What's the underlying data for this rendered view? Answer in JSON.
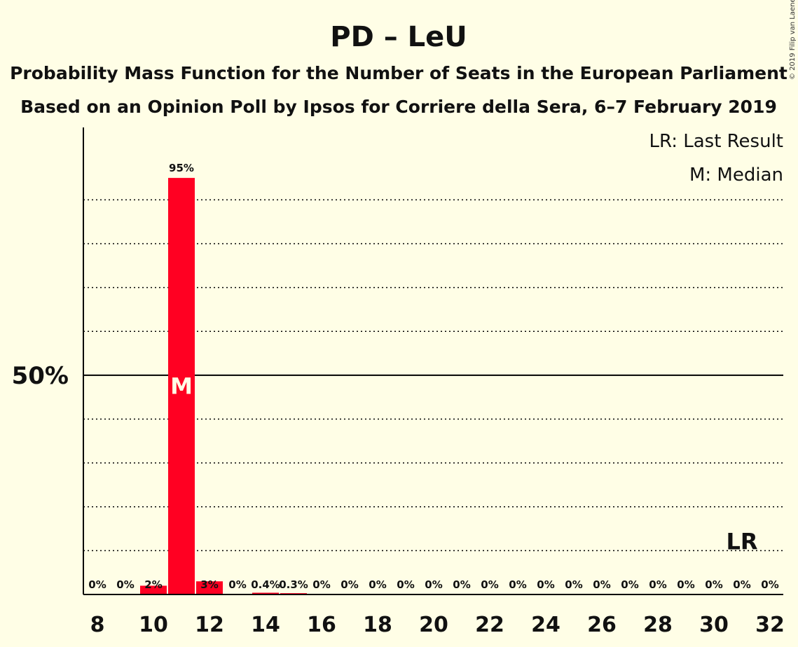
{
  "chart_data": {
    "type": "bar",
    "title": "PD – LeU",
    "subtitle": "Probability Mass Function for the Number of Seats in the European Parliament",
    "subtitle2": "Based on an Opinion Poll by Ipsos for Corriere della Sera, 6–7 February 2019",
    "copyright": "© 2019 Filip van Laenen",
    "legend": {
      "lr": "LR: Last Result",
      "m": "M: Median",
      "placement": "top-right"
    },
    "x": [
      8,
      9,
      10,
      11,
      12,
      13,
      14,
      15,
      16,
      17,
      18,
      19,
      20,
      21,
      22,
      23,
      24,
      25,
      26,
      27,
      28,
      29,
      30,
      31,
      32
    ],
    "values": [
      0,
      0,
      2,
      95,
      3,
      0,
      0.4,
      0.3,
      0,
      0,
      0,
      0,
      0,
      0,
      0,
      0,
      0,
      0,
      0,
      0,
      0,
      0,
      0,
      0,
      0
    ],
    "data_labels": [
      "0%",
      "0%",
      "2%",
      "95%",
      "3%",
      "0%",
      "0.4%",
      "0.3%",
      "0%",
      "0%",
      "0%",
      "0%",
      "0%",
      "0%",
      "0%",
      "0%",
      "0%",
      "0%",
      "0%",
      "0%",
      "0%",
      "0%",
      "0%",
      "0%",
      "0%"
    ],
    "x_tick_labels": [
      "8",
      "10",
      "12",
      "14",
      "16",
      "18",
      "20",
      "22",
      "24",
      "26",
      "28",
      "30",
      "32"
    ],
    "y_tick_label": "50%",
    "y_tick_value": 50,
    "ylim": [
      0,
      103
    ],
    "gridlines": [
      10,
      20,
      30,
      40,
      60,
      70,
      80,
      90
    ],
    "median_seat": 11,
    "median_label": "M",
    "last_result_seat": 31,
    "last_result_label": "LR",
    "bar_color": "#FF0022"
  }
}
